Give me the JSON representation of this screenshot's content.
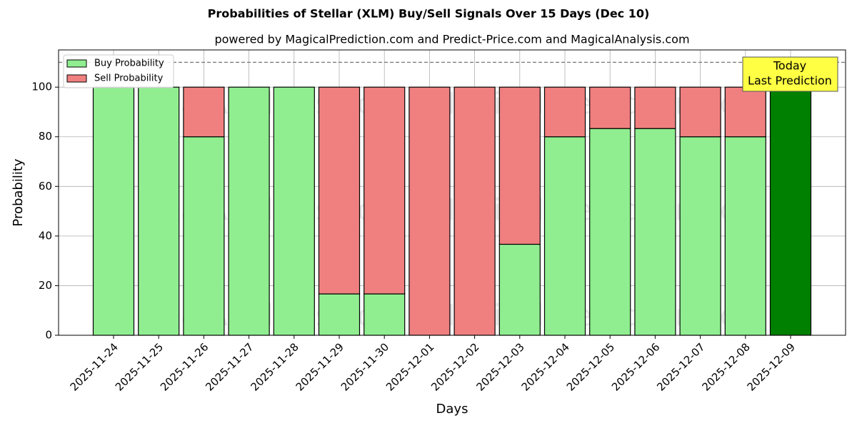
{
  "chart_data": {
    "type": "stacked_bar",
    "title": "Probabilities of Stellar (XLM) Buy/Sell Signals Over 15 Days (Dec 10)",
    "subtitle": "powered by MagicalPrediction.com and Predict-Price.com and MagicalAnalysis.com",
    "x_label": "Days",
    "y_label": "Probability",
    "categories": [
      "2025-11-24",
      "2025-11-25",
      "2025-11-26",
      "2025-11-27",
      "2025-11-28",
      "2025-11-29",
      "2025-11-30",
      "2025-12-01",
      "2025-12-02",
      "2025-12-03",
      "2025-12-04",
      "2025-12-05",
      "2025-12-06",
      "2025-12-07",
      "2025-12-08",
      "2025-12-09"
    ],
    "series": [
      {
        "name": "Buy Probability",
        "color": "#90ee90",
        "highlight_color": "#008000",
        "values": [
          100,
          100,
          80,
          100,
          100,
          16.67,
          16.67,
          0,
          0,
          36.67,
          80,
          83.33,
          83.33,
          80,
          80,
          100
        ]
      },
      {
        "name": "Sell Probability",
        "color": "#f08080",
        "values": [
          0,
          0,
          20,
          0,
          0,
          83.33,
          83.33,
          100,
          100,
          63.33,
          20,
          16.67,
          16.67,
          20,
          20,
          0
        ]
      }
    ],
    "ylim": [
      0,
      115
    ],
    "yticks": [
      0,
      20,
      40,
      60,
      80,
      100
    ],
    "grid": true,
    "reference_line": 110,
    "legend": "upper-left",
    "annotation": [
      "Today",
      "Last Prediction"
    ],
    "watermarks": [
      "MagicalAnalysis.com",
      "MagicalPrediction.com"
    ]
  }
}
